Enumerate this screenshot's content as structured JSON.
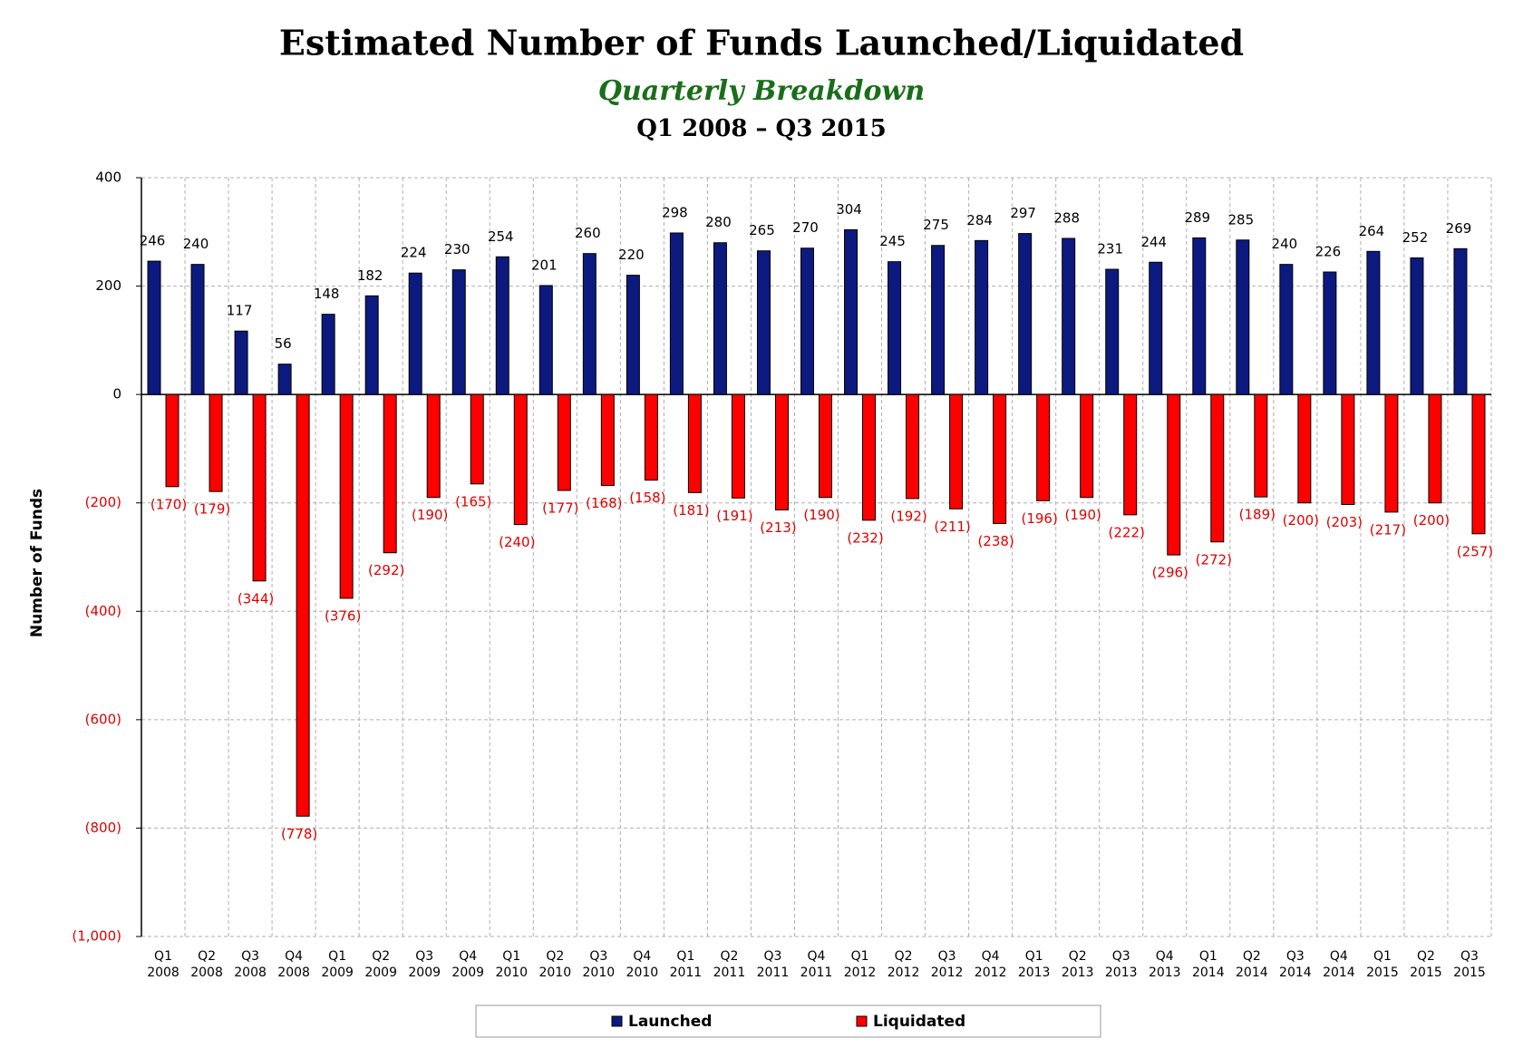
{
  "chart_data": {
    "type": "bar",
    "title": "Estimated Number of Funds Launched/Liquidated",
    "subtitle": "Quarterly Breakdown",
    "date_range": "Q1 2008 – Q3 2015",
    "y_label": "Number of Funds",
    "categories": [
      "Q1 2008",
      "Q2 2008",
      "Q3 2008",
      "Q4 2008",
      "Q1 2009",
      "Q2 2009",
      "Q3 2009",
      "Q4 2009",
      "Q1 2010",
      "Q2 2010",
      "Q3 2010",
      "Q4 2010",
      "Q1 2011",
      "Q2 2011",
      "Q3 2011",
      "Q4 2011",
      "Q1 2012",
      "Q2 2012",
      "Q3 2012",
      "Q4 2012",
      "Q1 2013",
      "Q2 2013",
      "Q3 2013",
      "Q4 2013",
      "Q1 2014",
      "Q2 2014",
      "Q3 2014",
      "Q4 2014",
      "Q1 2015",
      "Q2 2015",
      "Q3 2015"
    ],
    "series": [
      {
        "name": "Launched",
        "color": "#0c1a80",
        "values": [
          246,
          240,
          117,
          56,
          148,
          182,
          224,
          230,
          254,
          201,
          260,
          220,
          298,
          280,
          265,
          270,
          304,
          245,
          275,
          284,
          297,
          288,
          231,
          244,
          289,
          285,
          240,
          226,
          264,
          252,
          269
        ]
      },
      {
        "name": "Liquidated",
        "color": "#ff0000",
        "values": [
          -170,
          -179,
          -344,
          -778,
          -376,
          -292,
          -190,
          -165,
          -240,
          -177,
          -168,
          -158,
          -181,
          -191,
          -213,
          -190,
          -232,
          -192,
          -211,
          -238,
          -196,
          -190,
          -222,
          -296,
          -272,
          -189,
          -200,
          -203,
          -217,
          -200,
          -257
        ],
        "value_labels": [
          "(170)",
          "(179)",
          "(344)",
          "(778)",
          "(376)",
          "(292)",
          "(190)",
          "(165)",
          "(240)",
          "(177)",
          "(168)",
          "(158)",
          "(181)",
          "(191)",
          "(213)",
          "(190)",
          "(232)",
          "(192)",
          "(211)",
          "(238)",
          "(196)",
          "(190)",
          "(222)",
          "(296)",
          "(272)",
          "(189)",
          "(200)",
          "(203)",
          "(217)",
          "(200)",
          "(257)"
        ]
      }
    ],
    "ylim": [
      -1000,
      400
    ],
    "yticks": [
      400,
      200,
      0,
      {
        "value": -200,
        "label": "(200)"
      },
      {
        "value": -400,
        "label": "(400)"
      },
      {
        "value": -600,
        "label": "(600)"
      },
      {
        "value": -800,
        "label": "(800)"
      },
      {
        "value": -1000,
        "label": "(1,000)"
      }
    ],
    "grid": true,
    "legend": "bottom"
  }
}
